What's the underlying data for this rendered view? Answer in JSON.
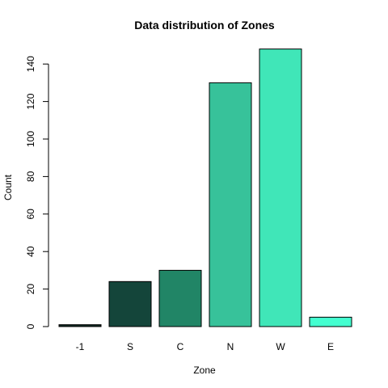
{
  "chart_data": {
    "type": "bar",
    "title": "Data distribution of Zones",
    "xlabel": "Zone",
    "ylabel": "Count",
    "categories": [
      "-1",
      "S",
      "C",
      "N",
      "W",
      "E"
    ],
    "values": [
      1,
      24,
      30,
      130,
      148,
      5
    ],
    "colors": [
      "#0f2a22",
      "#14453a",
      "#218566",
      "#37c29a",
      "#40e6b8",
      "#44ffd0"
    ],
    "ylim": [
      0,
      150
    ],
    "yticks": [
      0,
      20,
      40,
      60,
      80,
      100,
      120,
      140
    ],
    "grid": false,
    "legend": "none"
  }
}
